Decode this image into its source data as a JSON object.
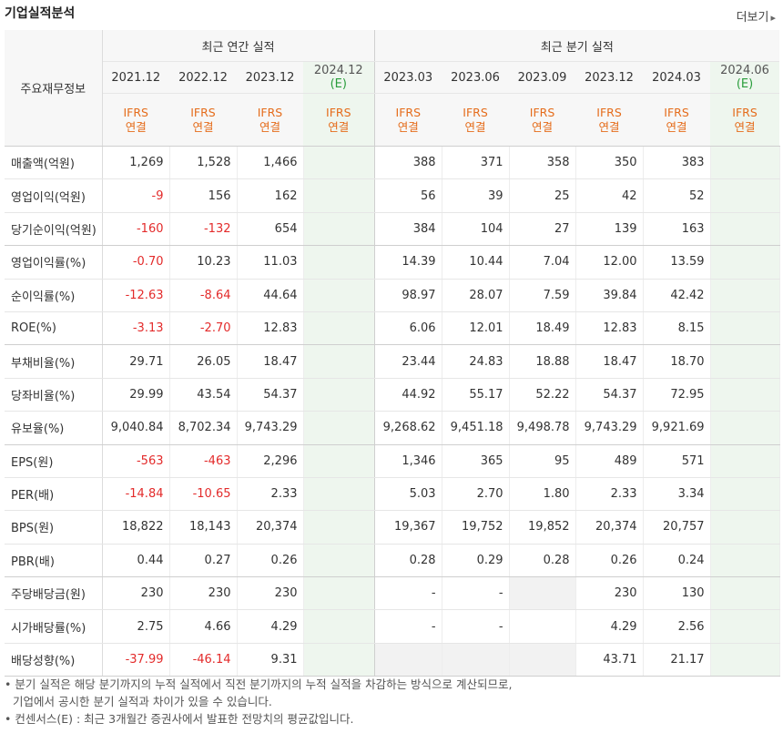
{
  "title": "기업실적분석",
  "more_label": "더보기",
  "more_arrow": "▸",
  "label_header": "주요재무정보",
  "group_annual": "최근 연간 실적",
  "group_quarter": "최근 분기 실적",
  "periods": [
    {
      "y": "2021.12",
      "est": false
    },
    {
      "y": "2022.12",
      "est": false
    },
    {
      "y": "2023.12",
      "est": false
    },
    {
      "y": "2024.12",
      "est": true
    },
    {
      "y": "2023.03",
      "est": false
    },
    {
      "y": "2023.06",
      "est": false
    },
    {
      "y": "2023.09",
      "est": false
    },
    {
      "y": "2023.12",
      "est": false
    },
    {
      "y": "2024.03",
      "est": false
    },
    {
      "y": "2024.06",
      "est": true
    }
  ],
  "est_mark": "(E)",
  "ifrs_line1": "IFRS",
  "ifrs_line2": "연결",
  "rows": [
    {
      "label": "매출액(억원)",
      "vals": [
        "1,269",
        "1,528",
        "1,466",
        "",
        "388",
        "371",
        "358",
        "350",
        "383",
        ""
      ],
      "end": false
    },
    {
      "label": "영업이익(억원)",
      "vals": [
        "-9",
        "156",
        "162",
        "",
        "56",
        "39",
        "25",
        "42",
        "52",
        ""
      ],
      "end": false
    },
    {
      "label": "당기순이익(억원)",
      "vals": [
        "-160",
        "-132",
        "654",
        "",
        "384",
        "104",
        "27",
        "139",
        "163",
        ""
      ],
      "end": true
    },
    {
      "label": "영업이익률(%)",
      "vals": [
        "-0.70",
        "10.23",
        "11.03",
        "",
        "14.39",
        "10.44",
        "7.04",
        "12.00",
        "13.59",
        ""
      ],
      "end": false
    },
    {
      "label": "순이익률(%)",
      "vals": [
        "-12.63",
        "-8.64",
        "44.64",
        "",
        "98.97",
        "28.07",
        "7.59",
        "39.84",
        "42.42",
        ""
      ],
      "end": false
    },
    {
      "label": "ROE(%)",
      "vals": [
        "-3.13",
        "-2.70",
        "12.83",
        "",
        "6.06",
        "12.01",
        "18.49",
        "12.83",
        "8.15",
        ""
      ],
      "end": true
    },
    {
      "label": "부채비율(%)",
      "vals": [
        "29.71",
        "26.05",
        "18.47",
        "",
        "23.44",
        "24.83",
        "18.88",
        "18.47",
        "18.70",
        ""
      ],
      "end": false
    },
    {
      "label": "당좌비율(%)",
      "vals": [
        "29.99",
        "43.54",
        "54.37",
        "",
        "44.92",
        "55.17",
        "52.22",
        "54.37",
        "72.95",
        ""
      ],
      "end": false
    },
    {
      "label": "유보율(%)",
      "vals": [
        "9,040.84",
        "8,702.34",
        "9,743.29",
        "",
        "9,268.62",
        "9,451.18",
        "9,498.78",
        "9,743.29",
        "9,921.69",
        ""
      ],
      "end": true
    },
    {
      "label": "EPS(원)",
      "vals": [
        "-563",
        "-463",
        "2,296",
        "",
        "1,346",
        "365",
        "95",
        "489",
        "571",
        ""
      ],
      "end": false
    },
    {
      "label": "PER(배)",
      "vals": [
        "-14.84",
        "-10.65",
        "2.33",
        "",
        "5.03",
        "2.70",
        "1.80",
        "2.33",
        "3.34",
        ""
      ],
      "end": false
    },
    {
      "label": "BPS(원)",
      "vals": [
        "18,822",
        "18,143",
        "20,374",
        "",
        "19,367",
        "19,752",
        "19,852",
        "20,374",
        "20,757",
        ""
      ],
      "end": false
    },
    {
      "label": "PBR(배)",
      "vals": [
        "0.44",
        "0.27",
        "0.26",
        "",
        "0.28",
        "0.29",
        "0.28",
        "0.26",
        "0.24",
        ""
      ],
      "end": true
    },
    {
      "label": "주당배당금(원)",
      "vals": [
        "230",
        "230",
        "230",
        "",
        "-",
        "-",
        "",
        "230",
        "130",
        ""
      ],
      "end": false,
      "blank": [
        6
      ]
    },
    {
      "label": "시가배당률(%)",
      "vals": [
        "2.75",
        "4.66",
        "4.29",
        "",
        "-",
        "-",
        "",
        "4.29",
        "2.56",
        ""
      ],
      "end": false
    },
    {
      "label": "배당성향(%)",
      "vals": [
        "-37.99",
        "-46.14",
        "9.31",
        "",
        "",
        "",
        "",
        "43.71",
        "21.17",
        ""
      ],
      "end": true,
      "blank": [
        4,
        5,
        6
      ]
    }
  ],
  "notes": [
    "• 분기 실적은 해당 분기까지의 누적 실적에서 직전 분기까지의 누적 실적을 차감하는 방식으로 계산되므로,",
    "기업에서 공시한 분기 실적과 차이가 있을 수 있습니다.",
    "• 컨센서스(E) : 최근 3개월간 증권사에서 발표한 전망치의 평균값입니다."
  ]
}
